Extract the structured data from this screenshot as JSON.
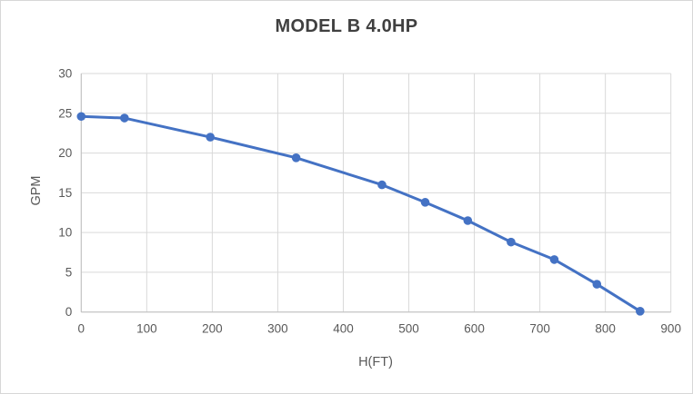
{
  "window": {
    "background": "#ffffff",
    "border_color": "#d7d7d7"
  },
  "chart_data": {
    "type": "line",
    "title": "MODEL B 4.0HP",
    "xlabel": "H(FT)",
    "ylabel": "GPM",
    "x": [
      0,
      66,
      197,
      328,
      459,
      525,
      590,
      656,
      722,
      787,
      853
    ],
    "y": [
      24.6,
      24.4,
      22.0,
      19.4,
      16.0,
      13.8,
      11.5,
      8.8,
      6.6,
      3.5,
      0.1
    ],
    "xlim": [
      0,
      900
    ],
    "ylim": [
      0,
      30
    ],
    "x_ticks": [
      0,
      100,
      200,
      300,
      400,
      500,
      600,
      700,
      800,
      900
    ],
    "y_ticks": [
      0,
      5,
      10,
      15,
      20,
      25,
      30
    ],
    "grid": true,
    "legend": "none",
    "line_color": "#4472c4",
    "marker": "circle",
    "marker_color": "#4472c4",
    "gridline_color": "#d9d9d9",
    "axis_line_color": "#bfbfbf",
    "tick_label_color": "#595959",
    "title_color": "#404040"
  }
}
